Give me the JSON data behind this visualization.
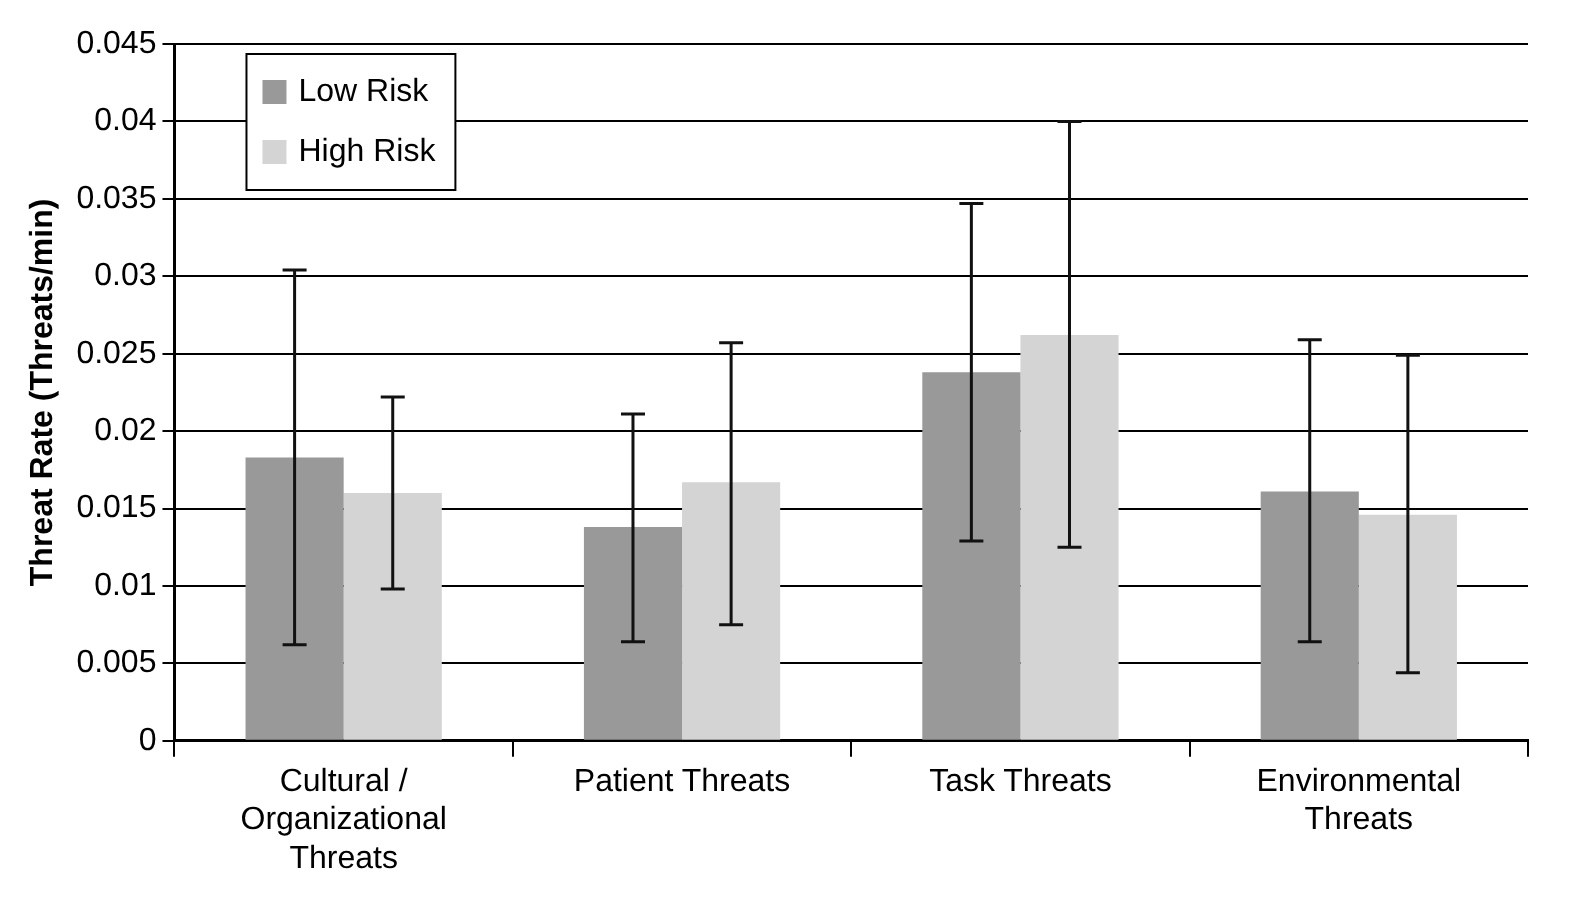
{
  "chart_data": {
    "type": "bar",
    "ylabel": "Threat Rate (Threats/min)",
    "categories": [
      "Cultural / Organizational Threats",
      "Patient Threats",
      "Task Threats",
      "Environmental Threats"
    ],
    "series": [
      {
        "name": "Low Risk",
        "color": "#999999",
        "values": [
          0.0183,
          0.0138,
          0.0238,
          0.0161
        ],
        "errors": [
          [
            0.0062,
            0.0304
          ],
          [
            0.0064,
            0.0211
          ],
          [
            0.0129,
            0.0347
          ],
          [
            0.0064,
            0.0259
          ]
        ]
      },
      {
        "name": "High Risk",
        "color": "#d4d4d4",
        "values": [
          0.016,
          0.0167,
          0.0262,
          0.0146
        ],
        "errors": [
          [
            0.0098,
            0.0222
          ],
          [
            0.0075,
            0.0257
          ],
          [
            0.0125,
            0.04
          ],
          [
            0.0044,
            0.0249
          ]
        ]
      }
    ],
    "ylim": [
      0,
      0.045
    ],
    "yticks": [
      0,
      0.005,
      0.01,
      0.015,
      0.02,
      0.025,
      0.03,
      0.035,
      0.04,
      0.045
    ],
    "grid": "y",
    "legend": "top left"
  }
}
